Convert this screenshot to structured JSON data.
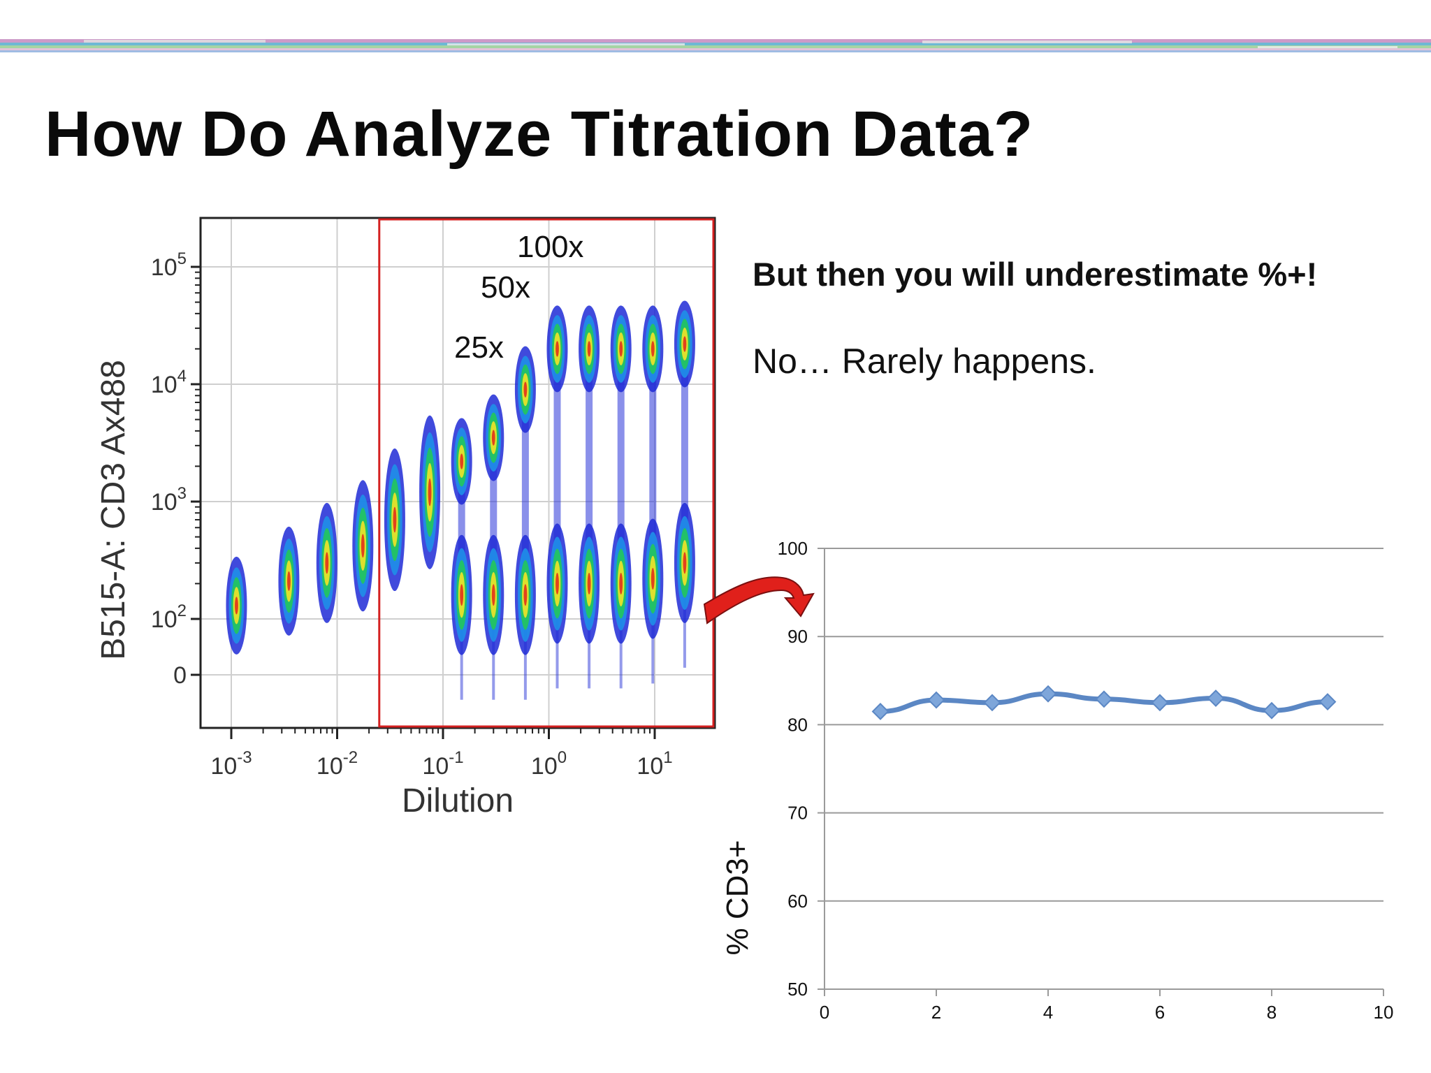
{
  "slide": {
    "title": "How Do Analyze Titration Data?",
    "bullets": [
      "But then you will underestimate %+!",
      "No… Rarely happens."
    ]
  },
  "colors": {
    "gate": "#d42020",
    "arrow": "#e0201b",
    "line": "#5b87c4",
    "marker": "#7ea6da",
    "gridline": "#9a9a9a"
  },
  "chart_data": [
    {
      "type": "scatter",
      "title": "",
      "xlabel": "Dilution",
      "ylabel": "B515-A: CD3 Ax488",
      "x_scale": "log",
      "y_scale": "biexponential",
      "x_ticks": [
        {
          "base": "10",
          "exp": "-3",
          "value": 0.001
        },
        {
          "base": "10",
          "exp": "-2",
          "value": 0.01
        },
        {
          "base": "10",
          "exp": "-1",
          "value": 0.1
        },
        {
          "base": "10",
          "exp": "0",
          "value": 1
        },
        {
          "base": "10",
          "exp": "1",
          "value": 10
        }
      ],
      "y_ticks": [
        {
          "base": "10",
          "exp": "5",
          "value": 100000
        },
        {
          "base": "10",
          "exp": "4",
          "value": 10000
        },
        {
          "base": "10",
          "exp": "3",
          "value": 1000
        },
        {
          "base": "10",
          "exp": "2",
          "value": 100
        },
        {
          "base": "0",
          "exp": "",
          "value": 0
        }
      ],
      "annotations": [
        "100x",
        "50x",
        "25x"
      ],
      "gate": {
        "x_range": [
          0.025,
          40
        ]
      },
      "populations": [
        {
          "dilution": 0.00112,
          "positive": 130,
          "negative": null
        },
        {
          "dilution": 0.0035,
          "positive": 210,
          "negative": null
        },
        {
          "dilution": 0.008,
          "positive": 300,
          "negative": null
        },
        {
          "dilution": 0.0175,
          "positive": 420,
          "negative": null
        },
        {
          "dilution": 0.035,
          "positive": 700,
          "negative": null
        },
        {
          "dilution": 0.075,
          "positive": 1200,
          "negative": null
        },
        {
          "dilution": 0.15,
          "positive": 2200,
          "negative": 160
        },
        {
          "dilution": 0.3,
          "positive": 3500,
          "negative": 160
        },
        {
          "dilution": 0.6,
          "positive": 9000,
          "negative": 160
        },
        {
          "dilution": 1.2,
          "positive": 20000,
          "negative": 200
        },
        {
          "dilution": 2.4,
          "positive": 20000,
          "negative": 200
        },
        {
          "dilution": 4.8,
          "positive": 20000,
          "negative": 200
        },
        {
          "dilution": 9.6,
          "positive": 20000,
          "negative": 220
        },
        {
          "dilution": 19.2,
          "positive": 22000,
          "negative": 300
        }
      ]
    },
    {
      "type": "line",
      "title": "",
      "xlabel": "",
      "ylabel": "% CD3+",
      "xlim": [
        0,
        10
      ],
      "ylim": [
        50,
        100
      ],
      "x_ticks": [
        0,
        2,
        4,
        6,
        8,
        10
      ],
      "y_ticks": [
        50,
        60,
        70,
        80,
        90,
        100
      ],
      "grid": "horizontal",
      "series": [
        {
          "x": [
            1,
            2,
            3,
            4,
            5,
            6,
            7,
            8,
            9
          ],
          "values": [
            81.5,
            82.8,
            82.5,
            83.5,
            82.9,
            82.5,
            83.0,
            81.6,
            82.6
          ]
        }
      ]
    }
  ]
}
